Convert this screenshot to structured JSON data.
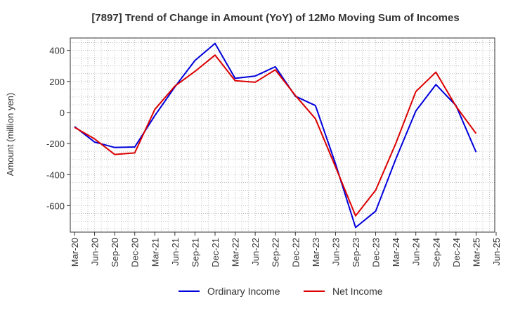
{
  "chart_data": {
    "type": "line",
    "title": "[7897]  Trend of Change in Amount (YoY) of 12Mo Moving Sum of Incomes",
    "xlabel": "",
    "ylabel": "Amount (million yen)",
    "x_tick_labels": [
      "Mar-20",
      "Jun-20",
      "Sep-20",
      "Dec-20",
      "Mar-21",
      "Jun-21",
      "Sep-21",
      "Dec-21",
      "Mar-22",
      "Jun-22",
      "Sep-22",
      "Dec-22",
      "Mar-23",
      "Jun-23",
      "Sep-23",
      "Dec-23",
      "Mar-24",
      "Jun-24",
      "Sep-24",
      "Dec-24",
      "Mar-25",
      "Jun-25"
    ],
    "y_ticks": [
      400,
      200,
      0,
      -200,
      -400,
      -600
    ],
    "y_tick_labels": [
      "400",
      "200",
      "0",
      "-200",
      "-400",
      "-600"
    ],
    "ylim": [
      -770,
      480
    ],
    "grid": true,
    "legend_position": "bottom-center",
    "series": [
      {
        "name": "Ordinary Income",
        "color": "#0000dd",
        "x": [
          "Mar-20",
          "Jun-20",
          "Sep-20",
          "Dec-20",
          "Mar-21",
          "Jun-21",
          "Sep-21",
          "Dec-21",
          "Mar-22",
          "Jun-22",
          "Sep-22",
          "Dec-22",
          "Mar-23",
          "Jun-23",
          "Sep-23",
          "Dec-23",
          "Mar-24",
          "Jun-24",
          "Sep-24",
          "Dec-24",
          "Mar-25"
        ],
        "values": [
          -90,
          -190,
          -225,
          -222,
          -20,
          165,
          335,
          445,
          220,
          235,
          295,
          105,
          45,
          -330,
          -740,
          -635,
          -300,
          10,
          180,
          45,
          -255
        ]
      },
      {
        "name": "Net Income",
        "color": "#dd0000",
        "x": [
          "Mar-20",
          "Jun-20",
          "Sep-20",
          "Dec-20",
          "Mar-21",
          "Jun-21",
          "Sep-21",
          "Dec-21",
          "Mar-22",
          "Jun-22",
          "Sep-22",
          "Dec-22",
          "Mar-23",
          "Jun-23",
          "Sep-23",
          "Dec-23",
          "Mar-24",
          "Jun-24",
          "Sep-24",
          "Dec-24",
          "Mar-25"
        ],
        "values": [
          -95,
          -170,
          -270,
          -260,
          20,
          170,
          265,
          370,
          205,
          195,
          275,
          110,
          -40,
          -350,
          -665,
          -500,
          -200,
          135,
          260,
          40,
          -135
        ]
      }
    ]
  }
}
